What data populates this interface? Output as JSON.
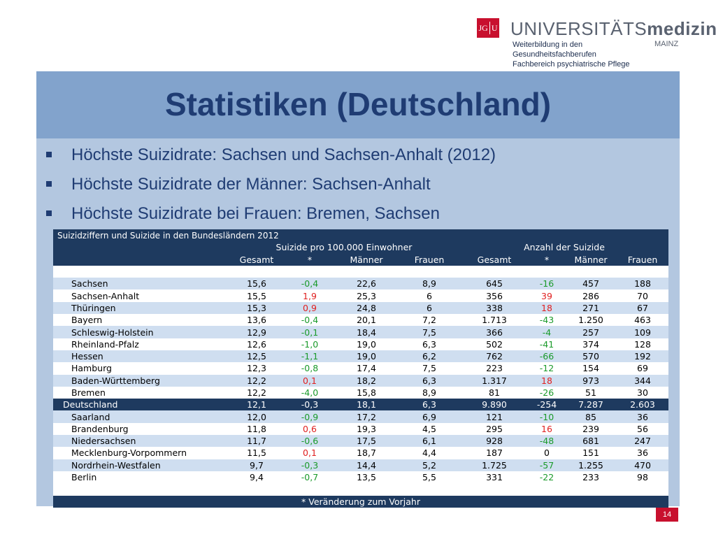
{
  "header": {
    "logo_mark": "JG|U",
    "logo_mark_left": "JG",
    "logo_mark_right": "U",
    "brand_regular": "UNIVERSITÄTS",
    "brand_bold": "medizin.",
    "brand_sub": "MAINZ",
    "dept_lines": [
      "Weiterbildung in den",
      "Gesundheitsfachberufen",
      "Fachbereich psychiatrische Pflege"
    ],
    "brand_color": "#c8102e"
  },
  "slide": {
    "title": "Statistiken (Deutschland)",
    "bullets": [
      "Höchste Suizidrate: Sachsen und Sachsen-Anhalt (2012)",
      "Höchste Suizidrate der Männer: Sachsen-Anhalt",
      "Höchste Suizidrate bei Frauen: Bremen, Sachsen"
    ],
    "page_number": "14"
  },
  "table": {
    "caption": "Suizidziffern und Suizide in den Bundesländern 2012",
    "group_headers": [
      "Suizide pro 100.000 Einwohner",
      "Anzahl der Suizide"
    ],
    "columns": [
      "Gesamt",
      "*",
      "Männer",
      "Frauen",
      "Gesamt",
      "*",
      "Männer",
      "Frauen"
    ],
    "rows": [
      {
        "state": "Sachsen",
        "rate_total": "15,6",
        "rate_change": "-0,4",
        "rate_men": "22,6",
        "rate_women": "8,9",
        "count_total": "645",
        "count_change": "-16",
        "count_men": "457",
        "count_women": "188"
      },
      {
        "state": "Sachsen-Anhalt",
        "rate_total": "15,5",
        "rate_change": "1,9",
        "rate_men": "25,3",
        "rate_women": "6",
        "count_total": "356",
        "count_change": "39",
        "count_men": "286",
        "count_women": "70"
      },
      {
        "state": "Thüringen",
        "rate_total": "15,3",
        "rate_change": "0,9",
        "rate_men": "24,8",
        "rate_women": "6",
        "count_total": "338",
        "count_change": "18",
        "count_men": "271",
        "count_women": "67"
      },
      {
        "state": "Bayern",
        "rate_total": "13,6",
        "rate_change": "-0,4",
        "rate_men": "20,1",
        "rate_women": "7,2",
        "count_total": "1.713",
        "count_change": "-43",
        "count_men": "1.250",
        "count_women": "463"
      },
      {
        "state": "Schleswig-Holstein",
        "rate_total": "12,9",
        "rate_change": "-0,1",
        "rate_men": "18,4",
        "rate_women": "7,5",
        "count_total": "366",
        "count_change": "-4",
        "count_men": "257",
        "count_women": "109"
      },
      {
        "state": "Rheinland-Pfalz",
        "rate_total": "12,6",
        "rate_change": "-1,0",
        "rate_men": "19,0",
        "rate_women": "6,3",
        "count_total": "502",
        "count_change": "-41",
        "count_men": "374",
        "count_women": "128"
      },
      {
        "state": "Hessen",
        "rate_total": "12,5",
        "rate_change": "-1,1",
        "rate_men": "19,0",
        "rate_women": "6,2",
        "count_total": "762",
        "count_change": "-66",
        "count_men": "570",
        "count_women": "192"
      },
      {
        "state": "Hamburg",
        "rate_total": "12,3",
        "rate_change": "-0,8",
        "rate_men": "17,4",
        "rate_women": "7,5",
        "count_total": "223",
        "count_change": "-12",
        "count_men": "154",
        "count_women": "69"
      },
      {
        "state": "Baden-Württemberg",
        "rate_total": "12,2",
        "rate_change": "0,1",
        "rate_men": "18,2",
        "rate_women": "6,3",
        "count_total": "1.317",
        "count_change": "18",
        "count_men": "973",
        "count_women": "344"
      },
      {
        "state": "Bremen",
        "rate_total": "12,2",
        "rate_change": "-4,0",
        "rate_men": "15,8",
        "rate_women": "8,9",
        "count_total": "81",
        "count_change": "-26",
        "count_men": "51",
        "count_women": "30"
      },
      {
        "state": "Deutschland",
        "rate_total": "12,1",
        "rate_change": "-0,3",
        "rate_men": "18,1",
        "rate_women": "6,3",
        "count_total": "9.890",
        "count_change": "-254",
        "count_men": "7.287",
        "count_women": "2.603",
        "total": true
      },
      {
        "state": "Saarland",
        "rate_total": "12,0",
        "rate_change": "-0,9",
        "rate_men": "17,2",
        "rate_women": "6,9",
        "count_total": "121",
        "count_change": "-10",
        "count_men": "85",
        "count_women": "36"
      },
      {
        "state": "Brandenburg",
        "rate_total": "11,8",
        "rate_change": "0,6",
        "rate_men": "19,3",
        "rate_women": "4,5",
        "count_total": "295",
        "count_change": "16",
        "count_men": "239",
        "count_women": "56"
      },
      {
        "state": "Niedersachsen",
        "rate_total": "11,7",
        "rate_change": "-0,6",
        "rate_men": "17,5",
        "rate_women": "6,1",
        "count_total": "928",
        "count_change": "-48",
        "count_men": "681",
        "count_women": "247"
      },
      {
        "state": "Mecklenburg-Vorpommern",
        "rate_total": "11,5",
        "rate_change": "0,1",
        "rate_men": "18,7",
        "rate_women": "4,4",
        "count_total": "187",
        "count_change": "0",
        "count_men": "151",
        "count_women": "36"
      },
      {
        "state": "Nordrhein-Westfalen",
        "rate_total": "9,7",
        "rate_change": "-0,3",
        "rate_men": "14,4",
        "rate_women": "5,2",
        "count_total": "1.725",
        "count_change": "-57",
        "count_men": "1.255",
        "count_women": "470"
      },
      {
        "state": "Berlin",
        "rate_total": "9,4",
        "rate_change": "-0,7",
        "rate_men": "13,5",
        "rate_women": "5,5",
        "count_total": "331",
        "count_change": "-22",
        "count_men": "233",
        "count_women": "98"
      }
    ],
    "footnote": "* Veränderung zum Vorjahr",
    "colors": {
      "increase": "#e02020",
      "decrease": "#1a9a2a",
      "header_bg": "#1e3a5f"
    }
  }
}
